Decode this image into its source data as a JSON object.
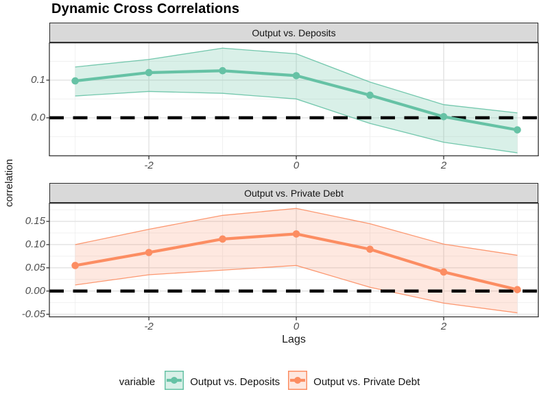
{
  "title": "Dynamic Cross Correlations",
  "colors": {
    "strip_bg": "#D9D9D9",
    "strip_border": "#2b2b2b",
    "panel_border": "#333333",
    "grid_major": "#E2E2E2",
    "grid_minor": "#F0F0F0",
    "tick_mark": "#333333",
    "tick_text": "#4d4d4d",
    "zero_line": "#000000",
    "deposits": "#66C2A5",
    "deposits_fill": "rgba(102,194,165,0.25)",
    "private_debt": "#FC8D62",
    "private_debt_fill": "rgba(252,141,98,0.2)"
  },
  "legend": {
    "title": "variable",
    "items": [
      {
        "label": "Output vs. Deposits",
        "color": "#66C2A5",
        "fill": "rgba(102,194,165,0.25)"
      },
      {
        "label": "Output vs. Private Debt",
        "color": "#FC8D62",
        "fill": "rgba(252,141,98,0.2)"
      }
    ]
  },
  "chart_data": {
    "type": "line",
    "title": "Dynamic Cross Correlations",
    "xlabel": "Lags",
    "ylabel": "correlation",
    "x": [
      -3,
      -2,
      -1,
      0,
      1,
      2,
      3
    ],
    "xlim": [
      -3.35,
      3.284
    ],
    "x_ticks": [
      -2,
      0,
      2
    ],
    "x_tick_labels": [
      "-2",
      "0",
      "2"
    ],
    "x_minor": [
      -3,
      -1,
      1,
      3
    ],
    "hline": {
      "y": 0,
      "style": "dashed",
      "color": "#000000"
    },
    "legend_position": "bottom",
    "grid": true,
    "panels": [
      {
        "strip": "Output vs. Deposits",
        "series": "Output vs. Deposits",
        "color": "#66C2A5",
        "fill": "rgba(102,194,165,0.25)",
        "ylim": [
          -0.102,
          0.2
        ],
        "y_ticks": [
          {
            "v": 0.1,
            "label": "0.1"
          },
          {
            "v": 0.0,
            "label": "0.0"
          }
        ],
        "y_minor": [
          -0.05,
          0.05,
          0.15
        ],
        "values": [
          0.098,
          0.12,
          0.125,
          0.112,
          0.06,
          0.003,
          -0.032
        ],
        "upper": [
          0.135,
          0.155,
          0.185,
          0.17,
          0.095,
          0.035,
          0.013
        ],
        "lower": [
          0.058,
          0.07,
          0.065,
          0.05,
          -0.015,
          -0.065,
          -0.093
        ]
      },
      {
        "strip": "Output vs. Private Debt",
        "series": "Output vs. Private Debt",
        "color": "#FC8D62",
        "fill": "rgba(252,141,98,0.2)",
        "ylim": [
          -0.0565,
          0.19
        ],
        "y_ticks": [
          {
            "v": 0.15,
            "label": "0.15"
          },
          {
            "v": 0.1,
            "label": "0.10"
          },
          {
            "v": 0.05,
            "label": "0.05"
          },
          {
            "v": 0.0,
            "label": "0.00"
          },
          {
            "v": -0.05,
            "label": "-0.05"
          }
        ],
        "y_minor": [
          -0.025,
          0.025,
          0.075,
          0.125,
          0.175
        ],
        "values": [
          0.055,
          0.083,
          0.112,
          0.123,
          0.09,
          0.041,
          0.003
        ],
        "upper": [
          0.1,
          0.133,
          0.163,
          0.178,
          0.145,
          0.101,
          0.077
        ],
        "lower": [
          0.013,
          0.035,
          0.045,
          0.055,
          0.008,
          -0.026,
          -0.047
        ]
      }
    ]
  }
}
